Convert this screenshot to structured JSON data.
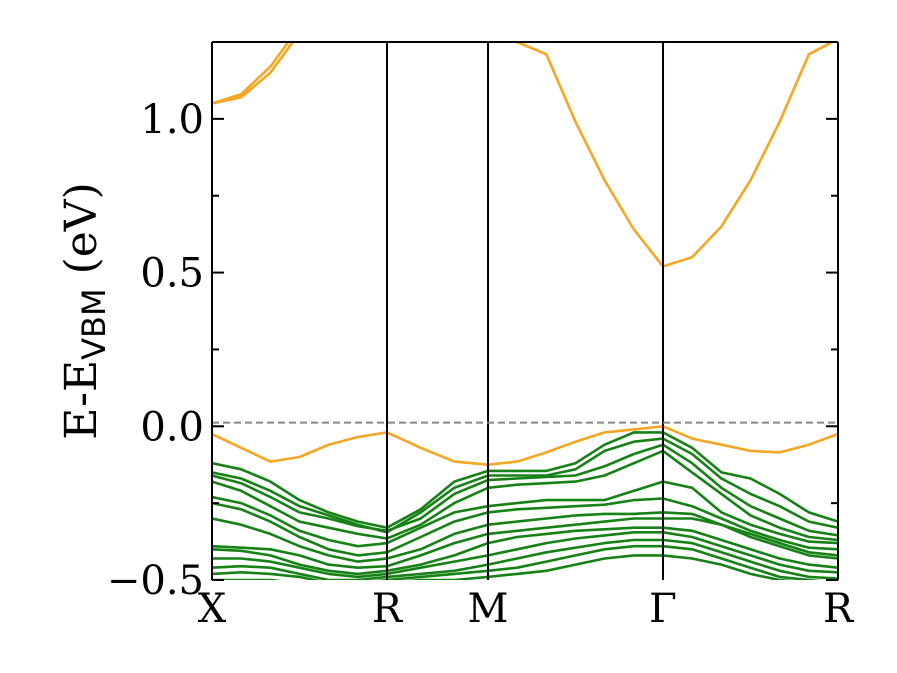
{
  "chart_data": {
    "type": "line",
    "title": "",
    "xlabel": "",
    "ylabel": {
      "prefix": "E-E",
      "subscript": "VBM",
      "suffix": " (eV)"
    },
    "ylim": [
      -0.5,
      1.25
    ],
    "yticks": [
      -0.5,
      0.0,
      0.5,
      1.0
    ],
    "ytick_labels": [
      "−0.5",
      "0.0",
      "0.5",
      "1.0"
    ],
    "kpath": {
      "labels": [
        "X",
        "R",
        "M",
        "Γ",
        "R"
      ],
      "positions": [
        0.0,
        0.866,
        1.366,
        2.232,
        3.098
      ]
    },
    "reference_line": {
      "y": 0.012,
      "style": "dashed",
      "color": "#888888"
    },
    "grid": false,
    "colors": {
      "conduction": "#f5a623",
      "valence": "#168216",
      "reference": "#888888",
      "axis": "#000000"
    },
    "x": [
      0.0,
      0.144,
      0.289,
      0.433,
      0.577,
      0.722,
      0.866,
      1.033,
      1.199,
      1.366,
      1.51,
      1.655,
      1.799,
      1.943,
      2.088,
      2.232,
      2.376,
      2.521,
      2.665,
      2.809,
      2.954,
      3.098
    ],
    "series": [
      {
        "band": "conduction",
        "values": [
          1.05,
          1.07,
          1.15,
          1.28,
          null,
          null,
          null,
          null,
          null,
          null,
          null,
          null,
          null,
          null,
          null,
          null,
          null,
          null,
          null,
          null,
          null,
          null
        ]
      },
      {
        "band": "conduction",
        "values": [
          1.05,
          1.08,
          1.17,
          1.3,
          null,
          null,
          null,
          null,
          null,
          null,
          null,
          null,
          null,
          null,
          null,
          null,
          null,
          null,
          null,
          null,
          null,
          null
        ]
      },
      {
        "band": "conduction",
        "values": [
          null,
          null,
          null,
          null,
          null,
          null,
          null,
          null,
          null,
          null,
          1.25,
          1.21,
          0.99,
          0.8,
          0.64,
          0.52,
          0.55,
          0.65,
          0.8,
          0.99,
          1.21,
          1.26
        ]
      },
      {
        "band": "conduction",
        "values": [
          -0.025,
          -0.07,
          -0.115,
          -0.1,
          -0.06,
          -0.035,
          -0.02,
          -0.07,
          -0.115,
          -0.125,
          -0.115,
          -0.085,
          -0.05,
          -0.02,
          -0.01,
          0.0,
          -0.04,
          -0.06,
          -0.08,
          -0.085,
          -0.06,
          -0.025
        ]
      },
      {
        "band": "valence",
        "values": [
          -0.12,
          -0.14,
          -0.18,
          -0.24,
          -0.28,
          -0.31,
          -0.33,
          -0.27,
          -0.18,
          -0.145,
          -0.145,
          -0.145,
          -0.12,
          -0.06,
          -0.02,
          -0.02,
          -0.07,
          -0.15,
          -0.17,
          -0.22,
          -0.28,
          -0.31
        ]
      },
      {
        "band": "valence",
        "values": [
          -0.15,
          -0.17,
          -0.21,
          -0.26,
          -0.29,
          -0.32,
          -0.345,
          -0.28,
          -0.2,
          -0.16,
          -0.16,
          -0.16,
          -0.14,
          -0.08,
          -0.05,
          -0.04,
          -0.09,
          -0.17,
          -0.22,
          -0.26,
          -0.31,
          -0.33
        ]
      },
      {
        "band": "valence",
        "values": [
          -0.16,
          -0.185,
          -0.23,
          -0.28,
          -0.3,
          -0.325,
          -0.34,
          -0.3,
          -0.22,
          -0.175,
          -0.17,
          -0.165,
          -0.16,
          -0.13,
          -0.09,
          -0.06,
          -0.12,
          -0.2,
          -0.26,
          -0.3,
          -0.34,
          -0.355
        ]
      },
      {
        "band": "valence",
        "values": [
          -0.18,
          -0.21,
          -0.26,
          -0.31,
          -0.33,
          -0.35,
          -0.365,
          -0.32,
          -0.25,
          -0.2,
          -0.19,
          -0.185,
          -0.18,
          -0.16,
          -0.12,
          -0.08,
          -0.15,
          -0.22,
          -0.29,
          -0.33,
          -0.36,
          -0.37
        ]
      },
      {
        "band": "valence",
        "values": [
          -0.23,
          -0.25,
          -0.29,
          -0.34,
          -0.37,
          -0.39,
          -0.38,
          -0.33,
          -0.28,
          -0.26,
          -0.25,
          -0.24,
          -0.24,
          -0.24,
          -0.21,
          -0.18,
          -0.2,
          -0.28,
          -0.32,
          -0.35,
          -0.375,
          -0.38
        ]
      },
      {
        "band": "valence",
        "values": [
          -0.25,
          -0.27,
          -0.31,
          -0.36,
          -0.4,
          -0.42,
          -0.41,
          -0.36,
          -0.31,
          -0.28,
          -0.27,
          -0.265,
          -0.26,
          -0.255,
          -0.24,
          -0.235,
          -0.26,
          -0.3,
          -0.34,
          -0.37,
          -0.395,
          -0.4
        ]
      },
      {
        "band": "valence",
        "values": [
          -0.3,
          -0.32,
          -0.35,
          -0.39,
          -0.42,
          -0.44,
          -0.43,
          -0.4,
          -0.35,
          -0.32,
          -0.31,
          -0.3,
          -0.29,
          -0.285,
          -0.285,
          -0.28,
          -0.285,
          -0.32,
          -0.35,
          -0.38,
          -0.41,
          -0.42
        ]
      },
      {
        "band": "valence",
        "values": [
          -0.39,
          -0.395,
          -0.4,
          -0.42,
          -0.45,
          -0.46,
          -0.455,
          -0.42,
          -0.38,
          -0.35,
          -0.34,
          -0.33,
          -0.32,
          -0.31,
          -0.3,
          -0.3,
          -0.3,
          -0.32,
          -0.36,
          -0.39,
          -0.42,
          -0.43
        ]
      },
      {
        "band": "valence",
        "values": [
          -0.4,
          -0.405,
          -0.42,
          -0.45,
          -0.47,
          -0.48,
          -0.47,
          -0.45,
          -0.42,
          -0.38,
          -0.36,
          -0.35,
          -0.34,
          -0.335,
          -0.33,
          -0.33,
          -0.34,
          -0.37,
          -0.4,
          -0.43,
          -0.45,
          -0.46
        ]
      },
      {
        "band": "valence",
        "values": [
          -0.43,
          -0.43,
          -0.44,
          -0.46,
          -0.48,
          -0.49,
          -0.48,
          -0.46,
          -0.44,
          -0.42,
          -0.4,
          -0.38,
          -0.365,
          -0.355,
          -0.345,
          -0.345,
          -0.36,
          -0.39,
          -0.42,
          -0.45,
          -0.47,
          -0.475
        ]
      },
      {
        "band": "valence",
        "values": [
          -0.46,
          -0.455,
          -0.46,
          -0.48,
          -0.5,
          -0.5,
          -0.49,
          -0.48,
          -0.47,
          -0.45,
          -0.43,
          -0.41,
          -0.395,
          -0.38,
          -0.37,
          -0.37,
          -0.38,
          -0.41,
          -0.44,
          -0.47,
          -0.49,
          -0.495
        ]
      },
      {
        "band": "valence",
        "values": [
          -0.48,
          -0.475,
          -0.48,
          -0.49,
          -0.51,
          -0.51,
          -0.5,
          -0.49,
          -0.48,
          -0.47,
          -0.46,
          -0.44,
          -0.42,
          -0.4,
          -0.39,
          -0.39,
          -0.4,
          -0.43,
          -0.46,
          -0.49,
          -0.5,
          -0.51
        ]
      },
      {
        "band": "valence",
        "values": [
          -0.5,
          -0.5,
          -0.5,
          -0.51,
          -0.52,
          -0.52,
          -0.51,
          -0.5,
          -0.5,
          -0.49,
          -0.48,
          -0.47,
          -0.45,
          -0.43,
          -0.42,
          -0.42,
          -0.43,
          -0.45,
          -0.48,
          -0.5,
          -0.51,
          -0.52
        ]
      }
    ]
  }
}
